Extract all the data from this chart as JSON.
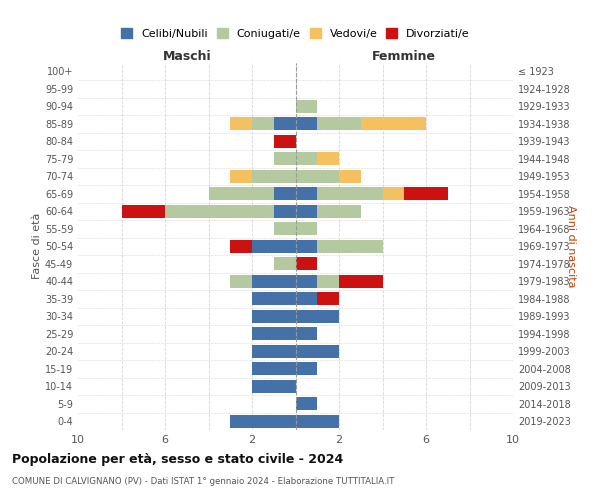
{
  "age_groups": [
    "100+",
    "95-99",
    "90-94",
    "85-89",
    "80-84",
    "75-79",
    "70-74",
    "65-69",
    "60-64",
    "55-59",
    "50-54",
    "45-49",
    "40-44",
    "35-39",
    "30-34",
    "25-29",
    "20-24",
    "15-19",
    "10-14",
    "5-9",
    "0-4"
  ],
  "birth_years": [
    "≤ 1923",
    "1924-1928",
    "1929-1933",
    "1934-1938",
    "1939-1943",
    "1944-1948",
    "1949-1953",
    "1954-1958",
    "1959-1963",
    "1964-1968",
    "1969-1973",
    "1974-1978",
    "1979-1983",
    "1984-1988",
    "1989-1993",
    "1994-1998",
    "1999-2003",
    "2004-2008",
    "2009-2013",
    "2014-2018",
    "2019-2023"
  ],
  "colors": {
    "celibi": "#4472a8",
    "coniugati": "#b5c9a0",
    "vedovi": "#f5c060",
    "divorziati": "#cc1111"
  },
  "male": {
    "celibi": [
      0,
      0,
      0,
      1,
      0,
      0,
      0,
      1,
      1,
      0,
      2,
      0,
      2,
      2,
      2,
      2,
      2,
      2,
      2,
      0,
      3
    ],
    "coniugati": [
      0,
      0,
      0,
      1,
      0,
      1,
      2,
      3,
      5,
      1,
      0,
      1,
      1,
      0,
      0,
      0,
      0,
      0,
      0,
      0,
      0
    ],
    "vedovi": [
      0,
      0,
      0,
      1,
      0,
      0,
      1,
      0,
      0,
      0,
      0,
      0,
      0,
      0,
      0,
      0,
      0,
      0,
      0,
      0,
      0
    ],
    "divorziati": [
      0,
      0,
      0,
      0,
      1,
      0,
      0,
      0,
      2,
      0,
      1,
      0,
      0,
      0,
      0,
      0,
      0,
      0,
      0,
      0,
      0
    ]
  },
  "female": {
    "celibi": [
      0,
      0,
      0,
      1,
      0,
      0,
      0,
      1,
      1,
      0,
      1,
      0,
      1,
      1,
      2,
      1,
      2,
      1,
      0,
      1,
      2
    ],
    "coniugati": [
      0,
      0,
      1,
      2,
      0,
      1,
      2,
      3,
      2,
      1,
      3,
      0,
      1,
      0,
      0,
      0,
      0,
      0,
      0,
      0,
      0
    ],
    "vedovi": [
      0,
      0,
      0,
      3,
      0,
      1,
      1,
      1,
      0,
      0,
      0,
      0,
      0,
      0,
      0,
      0,
      0,
      0,
      0,
      0,
      0
    ],
    "divorziati": [
      0,
      0,
      0,
      0,
      0,
      0,
      0,
      2,
      0,
      0,
      0,
      1,
      2,
      1,
      0,
      0,
      0,
      0,
      0,
      0,
      0
    ]
  },
  "xlim": 10,
  "title": "Popolazione per età, sesso e stato civile - 2024",
  "subtitle": "COMUNE DI CALVIGNANO (PV) - Dati ISTAT 1° gennaio 2024 - Elaborazione TUTTITALIA.IT",
  "ylabel_left": "Fasce di età",
  "ylabel_right": "Anni di nascita",
  "xlabel_left": "Maschi",
  "xlabel_right": "Femmine",
  "legend_labels": [
    "Celibi/Nubili",
    "Coniugati/e",
    "Vedovi/e",
    "Divorziati/e"
  ],
  "background_color": "#ffffff",
  "grid_color": "#cccccc"
}
